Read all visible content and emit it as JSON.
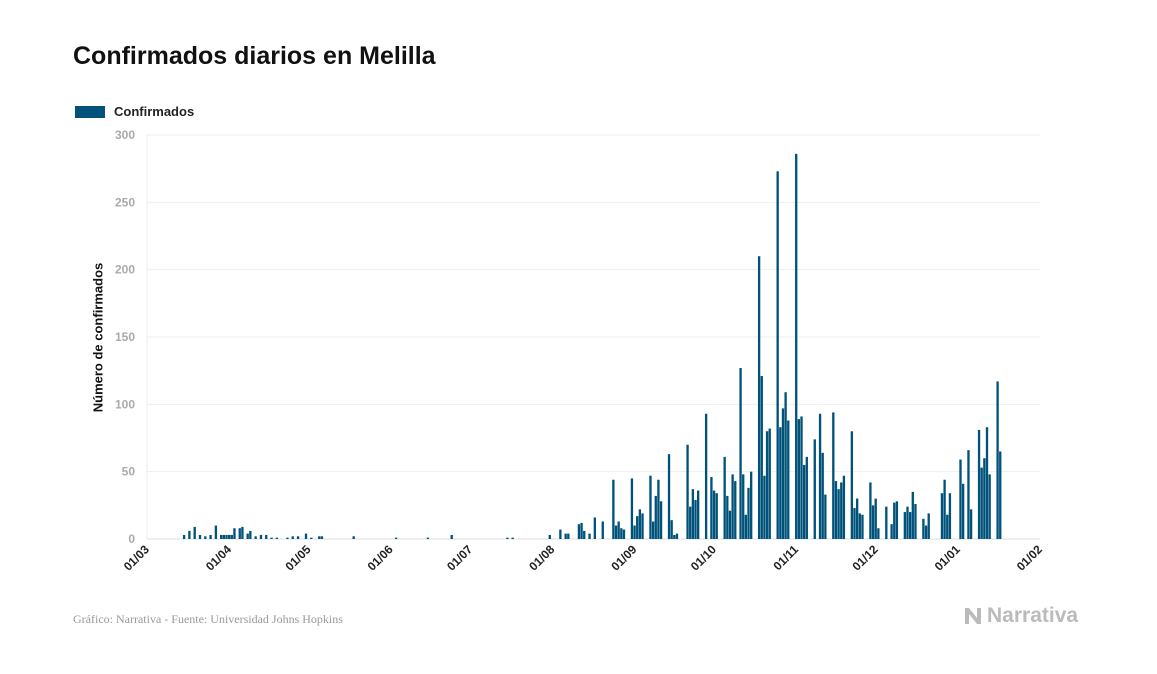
{
  "chart_data": {
    "type": "bar",
    "title": "Confirmados diarios en Melilla",
    "legend": [
      "Confirmados"
    ],
    "legend_placement": "top-left",
    "xlabel": "",
    "ylabel": "Número de confirmados",
    "start_date": "2020-03-01",
    "x_unit": "days since start_date",
    "xlim": [
      0,
      337
    ],
    "ylim": [
      0,
      300
    ],
    "yticks": [
      0,
      50,
      100,
      150,
      200,
      250,
      300
    ],
    "xticks": [
      {
        "day": 0,
        "label": "01/03"
      },
      {
        "day": 31,
        "label": "01/04"
      },
      {
        "day": 61,
        "label": "01/05"
      },
      {
        "day": 92,
        "label": "01/06"
      },
      {
        "day": 122,
        "label": "01/07"
      },
      {
        "day": 153,
        "label": "01/08"
      },
      {
        "day": 184,
        "label": "01/09"
      },
      {
        "day": 214,
        "label": "01/10"
      },
      {
        "day": 245,
        "label": "01/11"
      },
      {
        "day": 275,
        "label": "01/12"
      },
      {
        "day": 306,
        "label": "01/01"
      },
      {
        "day": 337,
        "label": "01/02"
      }
    ],
    "grid": true,
    "color": "#00527a",
    "series": [
      {
        "name": "Confirmados",
        "points": [
          [
            14,
            3
          ],
          [
            16,
            6
          ],
          [
            18,
            9
          ],
          [
            20,
            3
          ],
          [
            22,
            2
          ],
          [
            24,
            3
          ],
          [
            26,
            10
          ],
          [
            28,
            3
          ],
          [
            29,
            3
          ],
          [
            30,
            3
          ],
          [
            31,
            3
          ],
          [
            32,
            3
          ],
          [
            33,
            8
          ],
          [
            35,
            8
          ],
          [
            36,
            9
          ],
          [
            38,
            4
          ],
          [
            39,
            6
          ],
          [
            41,
            2
          ],
          [
            43,
            3
          ],
          [
            45,
            3
          ],
          [
            47,
            1
          ],
          [
            49,
            1
          ],
          [
            53,
            1
          ],
          [
            55,
            2
          ],
          [
            57,
            2
          ],
          [
            60,
            4
          ],
          [
            62,
            1
          ],
          [
            65,
            2
          ],
          [
            66,
            2
          ],
          [
            78,
            2
          ],
          [
            94,
            1
          ],
          [
            106,
            1
          ],
          [
            115,
            3
          ],
          [
            136,
            1
          ],
          [
            138,
            1
          ],
          [
            152,
            3
          ],
          [
            156,
            7
          ],
          [
            158,
            4
          ],
          [
            159,
            4
          ],
          [
            163,
            11
          ],
          [
            164,
            12
          ],
          [
            165,
            6
          ],
          [
            167,
            4
          ],
          [
            169,
            16
          ],
          [
            172,
            13
          ],
          [
            176,
            44
          ],
          [
            177,
            10
          ],
          [
            178,
            13
          ],
          [
            179,
            8
          ],
          [
            180,
            7
          ],
          [
            183,
            45
          ],
          [
            184,
            10
          ],
          [
            185,
            17
          ],
          [
            186,
            22
          ],
          [
            187,
            19
          ],
          [
            190,
            47
          ],
          [
            191,
            13
          ],
          [
            192,
            32
          ],
          [
            193,
            44
          ],
          [
            194,
            28
          ],
          [
            197,
            63
          ],
          [
            198,
            14
          ],
          [
            199,
            3
          ],
          [
            200,
            4
          ],
          [
            204,
            70
          ],
          [
            205,
            24
          ],
          [
            206,
            37
          ],
          [
            207,
            29
          ],
          [
            208,
            36
          ],
          [
            211,
            93
          ],
          [
            213,
            46
          ],
          [
            214,
            36
          ],
          [
            215,
            34
          ],
          [
            218,
            61
          ],
          [
            219,
            32
          ],
          [
            220,
            21
          ],
          [
            221,
            48
          ],
          [
            222,
            43
          ],
          [
            224,
            127
          ],
          [
            225,
            48
          ],
          [
            226,
            18
          ],
          [
            227,
            38
          ],
          [
            228,
            50
          ],
          [
            231,
            210
          ],
          [
            232,
            121
          ],
          [
            233,
            47
          ],
          [
            234,
            80
          ],
          [
            235,
            82
          ],
          [
            238,
            273
          ],
          [
            239,
            83
          ],
          [
            240,
            97
          ],
          [
            241,
            109
          ],
          [
            242,
            88
          ],
          [
            245,
            286
          ],
          [
            246,
            89
          ],
          [
            247,
            91
          ],
          [
            248,
            55
          ],
          [
            249,
            61
          ],
          [
            252,
            74
          ],
          [
            254,
            93
          ],
          [
            255,
            64
          ],
          [
            256,
            33
          ],
          [
            259,
            94
          ],
          [
            260,
            43
          ],
          [
            261,
            37
          ],
          [
            262,
            42
          ],
          [
            263,
            47
          ],
          [
            266,
            80
          ],
          [
            267,
            23
          ],
          [
            268,
            30
          ],
          [
            269,
            19
          ],
          [
            270,
            18
          ],
          [
            273,
            42
          ],
          [
            274,
            25
          ],
          [
            275,
            30
          ],
          [
            276,
            8
          ],
          [
            279,
            24
          ],
          [
            281,
            11
          ],
          [
            282,
            27
          ],
          [
            283,
            28
          ],
          [
            286,
            20
          ],
          [
            287,
            24
          ],
          [
            288,
            20
          ],
          [
            289,
            35
          ],
          [
            290,
            26
          ],
          [
            293,
            15
          ],
          [
            294,
            10
          ],
          [
            295,
            19
          ],
          [
            300,
            34
          ],
          [
            301,
            44
          ],
          [
            302,
            18
          ],
          [
            303,
            34
          ],
          [
            307,
            59
          ],
          [
            308,
            41
          ],
          [
            310,
            66
          ],
          [
            311,
            22
          ],
          [
            314,
            81
          ],
          [
            315,
            53
          ],
          [
            316,
            60
          ],
          [
            317,
            83
          ],
          [
            318,
            48
          ],
          [
            321,
            117
          ],
          [
            322,
            65
          ]
        ]
      }
    ]
  },
  "footer": {
    "source": "Gráfico: Narrativa - Fuente: Universidad Johns Hopkins",
    "brand": "Narrativa"
  }
}
